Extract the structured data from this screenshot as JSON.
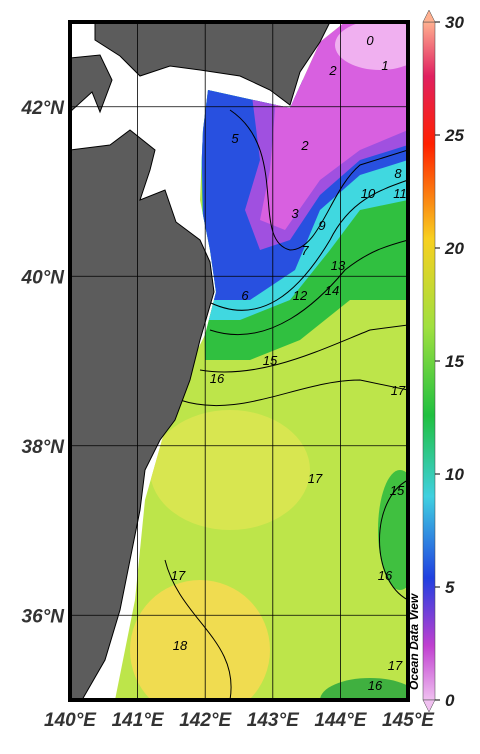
{
  "map": {
    "xlim": [
      140,
      145
    ],
    "ylim": [
      35,
      43
    ],
    "xticks": [
      {
        "value": 140,
        "label": "140°E"
      },
      {
        "value": 141,
        "label": "141°E"
      },
      {
        "value": 142,
        "label": "142°E"
      },
      {
        "value": 143,
        "label": "143°E"
      },
      {
        "value": 144,
        "label": "144°E"
      },
      {
        "value": 145,
        "label": "145°E"
      }
    ],
    "yticks": [
      {
        "value": 36,
        "label": "36°N"
      },
      {
        "value": 38,
        "label": "38°N"
      },
      {
        "value": 40,
        "label": "40°N"
      },
      {
        "value": 42,
        "label": "42°N"
      }
    ],
    "grid": true,
    "contour_labels": [
      0,
      1,
      2,
      2,
      5,
      3,
      7,
      9,
      10,
      8,
      11,
      6,
      12,
      13,
      14,
      15,
      16,
      17,
      17,
      17,
      15,
      16,
      18,
      17,
      16
    ],
    "colorbar": {
      "lim": [
        0,
        30
      ],
      "ticks": [
        0,
        5,
        10,
        15,
        20,
        25,
        30
      ]
    },
    "watermark": "Ocean Data View"
  }
}
